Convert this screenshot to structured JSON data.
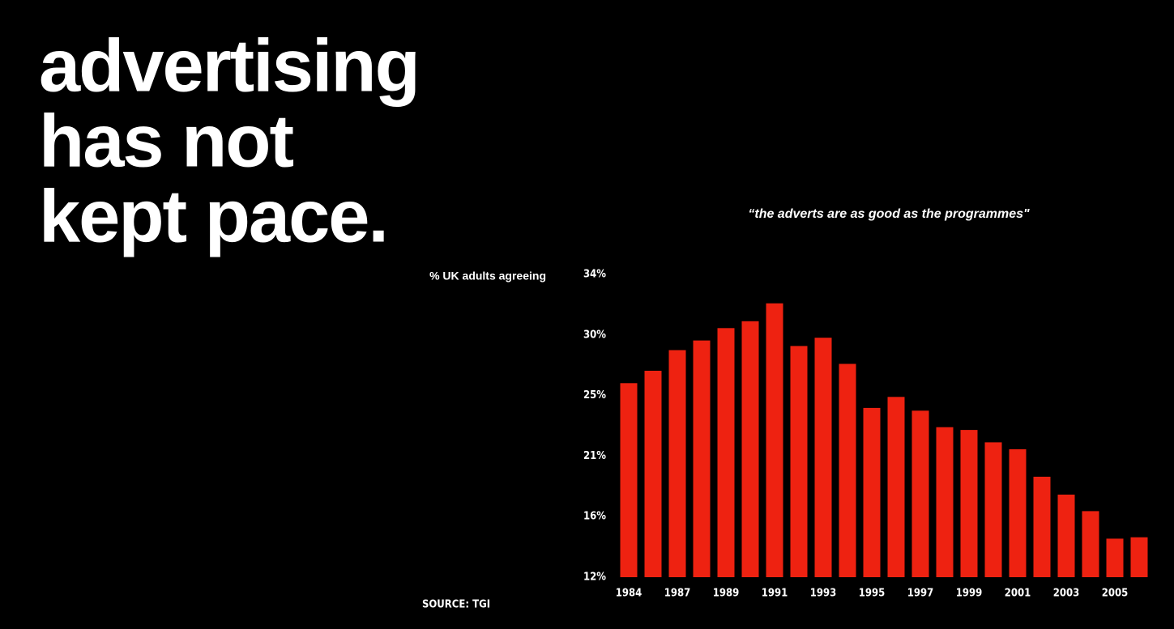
{
  "chart_data": {
    "type": "bar",
    "title": [
      "advertising",
      "has not",
      "kept pace."
    ],
    "subtitle": "“the adverts are as good as the programmes\"",
    "y_label": "% UK adults agreeing",
    "source": "SOURCE: TGI",
    "categories": [
      "1984",
      null,
      "1987",
      null,
      "1989",
      null,
      "1991",
      null,
      "1993",
      null,
      "1995",
      null,
      "1997",
      null,
      "1999",
      null,
      "2001",
      null,
      "2003",
      null,
      "2005",
      null
    ],
    "values": [
      26.1,
      27.0,
      28.5,
      29.2,
      30.1,
      30.6,
      31.9,
      28.8,
      29.4,
      27.5,
      24.3,
      25.1,
      24.1,
      22.9,
      22.7,
      21.8,
      21.3,
      19.3,
      18.0,
      16.8,
      14.8,
      14.9
    ],
    "color": "#ee2211",
    "ylim": [
      12,
      34
    ],
    "yticks": [
      {
        "value": 12,
        "label": "12%"
      },
      {
        "value": 16.4,
        "label": "16%"
      },
      {
        "value": 20.8,
        "label": "21%"
      },
      {
        "value": 25.2,
        "label": "25%"
      },
      {
        "value": 29.6,
        "label": "30%"
      },
      {
        "value": 34,
        "label": "34%"
      }
    ],
    "grid": false
  }
}
